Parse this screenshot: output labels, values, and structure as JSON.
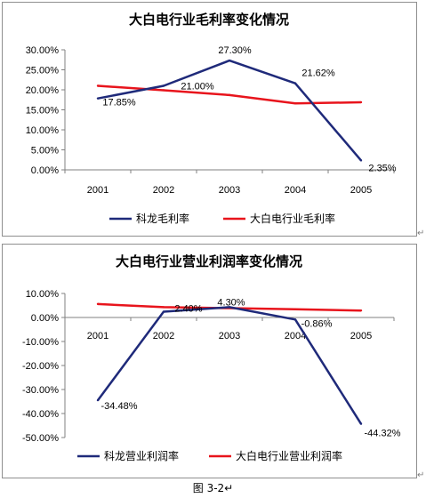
{
  "chart_data": [
    {
      "type": "line",
      "title": "大白电行业毛利率变化情况",
      "categories": [
        "2001",
        "2002",
        "2003",
        "2004",
        "2005"
      ],
      "y_tick_labels": [
        "30.00%",
        "25.00%",
        "20.00%",
        "15.00%",
        "10.00%",
        "5.00%",
        "0.00%"
      ],
      "ylim": [
        0,
        30
      ],
      "grid": false,
      "legend_position": "bottom",
      "series": [
        {
          "name": "科龙毛利率",
          "color": "#1f2a7a",
          "values": [
            17.85,
            21.0,
            27.3,
            21.62,
            2.35
          ],
          "data_labels": [
            "17.85%",
            "21.00%",
            "27.30%",
            "21.62%",
            "2.35%"
          ]
        },
        {
          "name": "大白电行业毛利率",
          "color": "#e8141c",
          "values": [
            21.0,
            19.9,
            18.7,
            16.6,
            16.9
          ]
        }
      ]
    },
    {
      "type": "line",
      "title": "大白电行业营业利润率变化情况",
      "categories": [
        "2001",
        "2002",
        "2003",
        "2004",
        "2005"
      ],
      "y_tick_labels": [
        "10.00%",
        "0.00%",
        "-10.00%",
        "-20.00%",
        "-30.00%",
        "-40.00%",
        "-50.00%"
      ],
      "ylim": [
        -50,
        10
      ],
      "grid": false,
      "legend_position": "bottom",
      "series": [
        {
          "name": "科龙营业利润率",
          "color": "#1f2a7a",
          "values": [
            -34.48,
            2.4,
            4.3,
            -0.86,
            -44.32
          ],
          "data_labels": [
            "-34.48%",
            "2.40%",
            "4.30%",
            "-0.86%",
            "-44.32%"
          ]
        },
        {
          "name": "大白电行业营业利润率",
          "color": "#e8141c",
          "values": [
            5.6,
            4.3,
            3.9,
            3.4,
            2.9
          ]
        }
      ]
    }
  ],
  "figure_caption": "图 3-2",
  "mark_symbol": "↵"
}
